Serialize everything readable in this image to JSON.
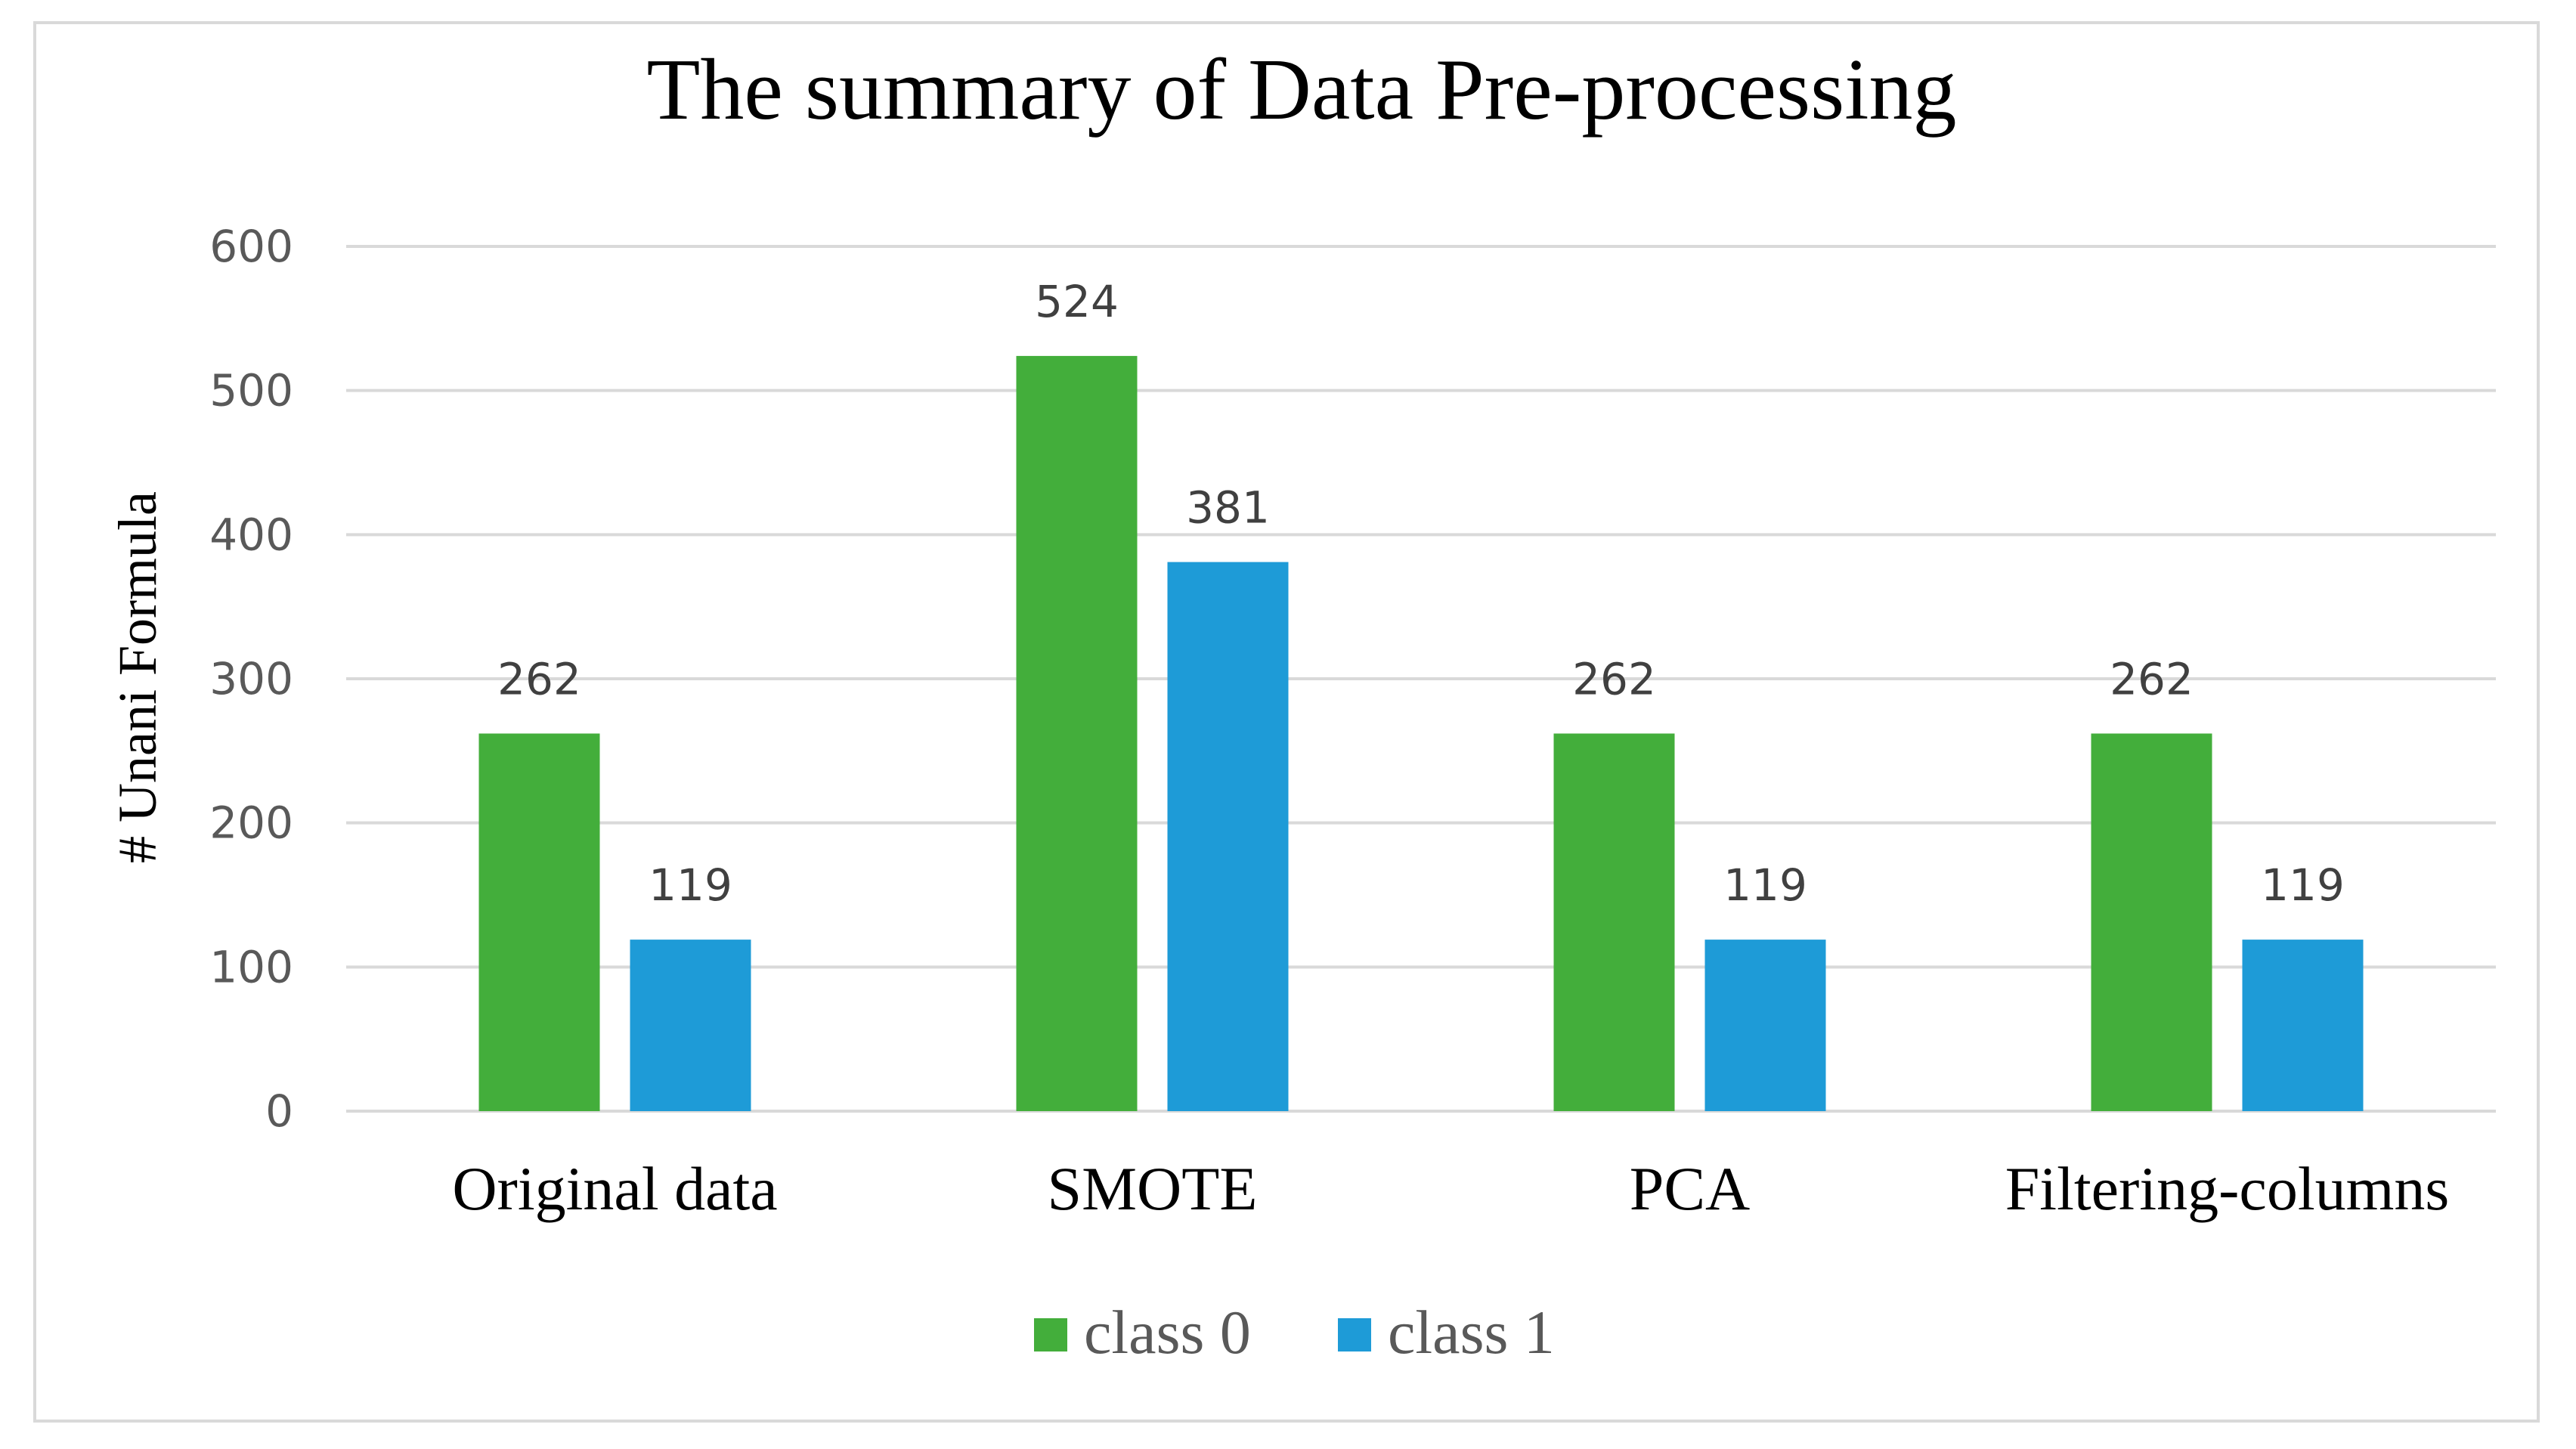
{
  "chart_data": {
    "type": "bar",
    "title": "The summary of Data Pre-processing",
    "xlabel": "",
    "ylabel": "# Unani Formula",
    "categories": [
      "Original data",
      "SMOTE",
      "PCA",
      "Filtering-columns"
    ],
    "series": [
      {
        "name": "class 0",
        "color": "#43ae3b",
        "values": [
          262,
          524,
          262,
          262
        ]
      },
      {
        "name": "class 1",
        "color": "#1e9bd7",
        "values": [
          119,
          381,
          119,
          119
        ]
      }
    ],
    "ylim": [
      0,
      600
    ],
    "yticks": [
      "0",
      "100",
      "200",
      "300",
      "400",
      "500",
      "600"
    ],
    "grid": true,
    "legend_position": "bottom"
  }
}
